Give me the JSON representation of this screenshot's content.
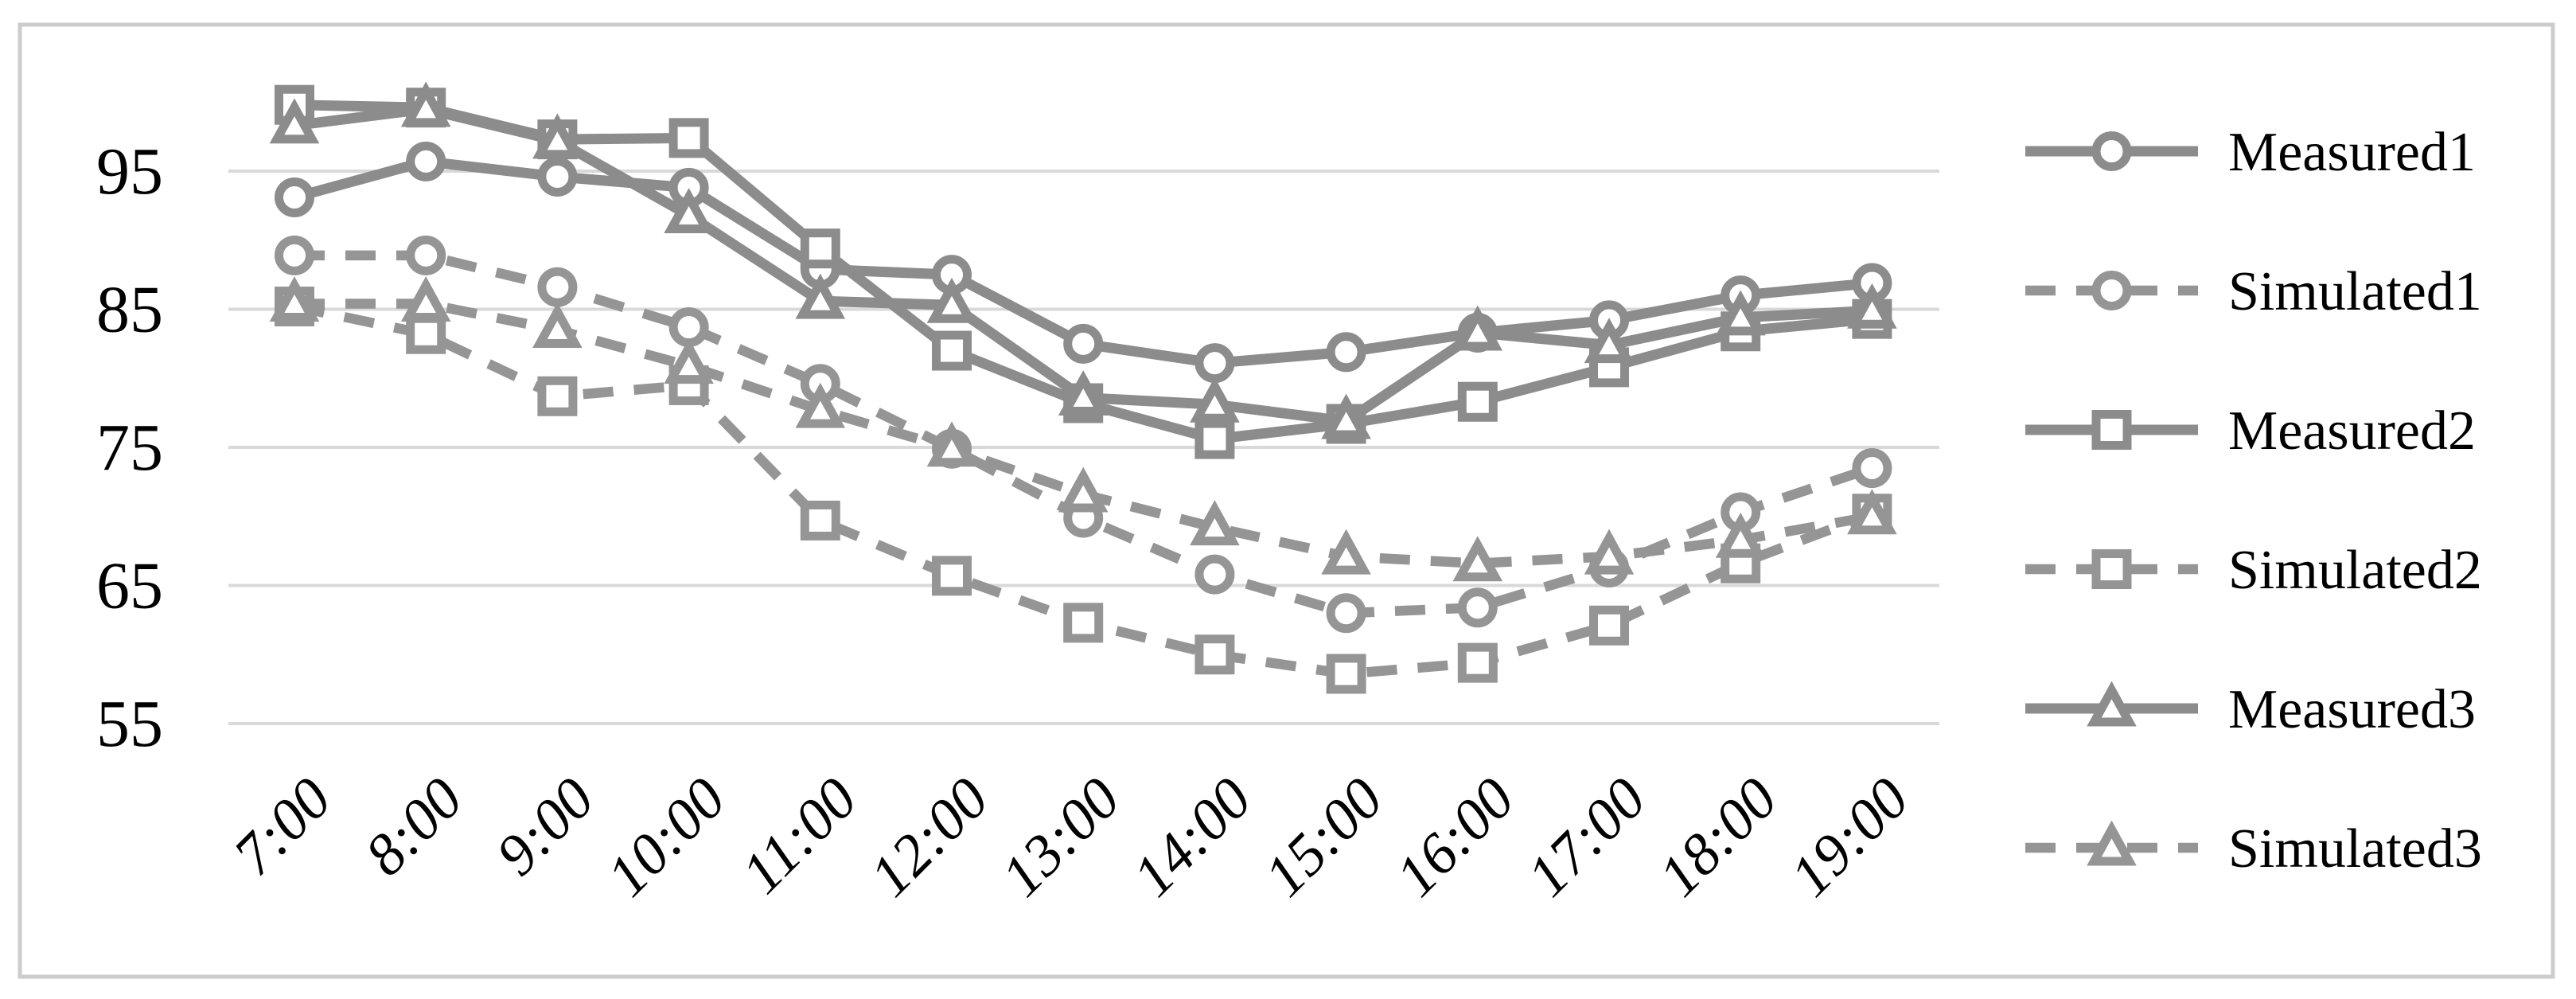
{
  "chart_data": {
    "type": "line",
    "title": "",
    "xlabel": "",
    "ylabel": "",
    "categories": [
      "7:00",
      "8:00",
      "9:00",
      "10:00",
      "11:00",
      "12:00",
      "13:00",
      "14:00",
      "15:00",
      "16:00",
      "17:00",
      "18:00",
      "19:00"
    ],
    "series": [
      {
        "name": "Measured1",
        "line_style": "solid",
        "marker": "circle",
        "values": [
          93.1,
          95.7,
          94.6,
          93.8,
          87.9,
          87.5,
          82.5,
          81.1,
          81.9,
          83.3,
          84.2,
          86.0,
          86.9
        ]
      },
      {
        "name": "Simulated1",
        "line_style": "dashed",
        "marker": "circle",
        "values": [
          88.9,
          88.9,
          86.6,
          83.7,
          79.6,
          74.9,
          69.9,
          65.8,
          63.0,
          63.4,
          66.3,
          70.3,
          73.5
        ]
      },
      {
        "name": "Measured2",
        "line_style": "solid",
        "marker": "square",
        "values": [
          99.8,
          99.6,
          97.3,
          97.4,
          89.4,
          82.0,
          78.2,
          75.6,
          76.7,
          78.3,
          80.8,
          83.4,
          84.3
        ]
      },
      {
        "name": "Simulated2",
        "line_style": "dashed",
        "marker": "square",
        "values": [
          85.2,
          83.2,
          78.7,
          79.5,
          69.7,
          65.7,
          62.3,
          60.0,
          58.6,
          59.4,
          62.1,
          66.6,
          70.2
        ]
      },
      {
        "name": "Measured3",
        "line_style": "solid",
        "marker": "triangle",
        "values": [
          98.3,
          99.5,
          97.2,
          91.8,
          85.6,
          85.3,
          78.6,
          78.1,
          76.9,
          83.3,
          82.4,
          84.4,
          84.9
        ]
      },
      {
        "name": "Simulated3",
        "line_style": "dashed",
        "marker": "triangle",
        "values": [
          85.4,
          85.4,
          83.5,
          80.9,
          77.7,
          74.9,
          71.6,
          69.2,
          67.1,
          66.6,
          67.1,
          68.3,
          70.0
        ]
      }
    ],
    "y_ticks": [
      95,
      85,
      75,
      65,
      55
    ],
    "ylim": [
      52.5,
      105
    ],
    "grid": true,
    "legend_position": "right",
    "legend_order": [
      "Measured1",
      "Simulated1",
      "Measured2",
      "Simulated2",
      "Measured3",
      "Simulated3"
    ],
    "colors": {
      "solid_line": "#8c8c8c",
      "dashed_line": "#959595",
      "marker_fill": "#ffffff",
      "gridline": "#d9d9d9",
      "frame": "#cccccc",
      "text": "#000000",
      "background": "#ffffff"
    }
  }
}
